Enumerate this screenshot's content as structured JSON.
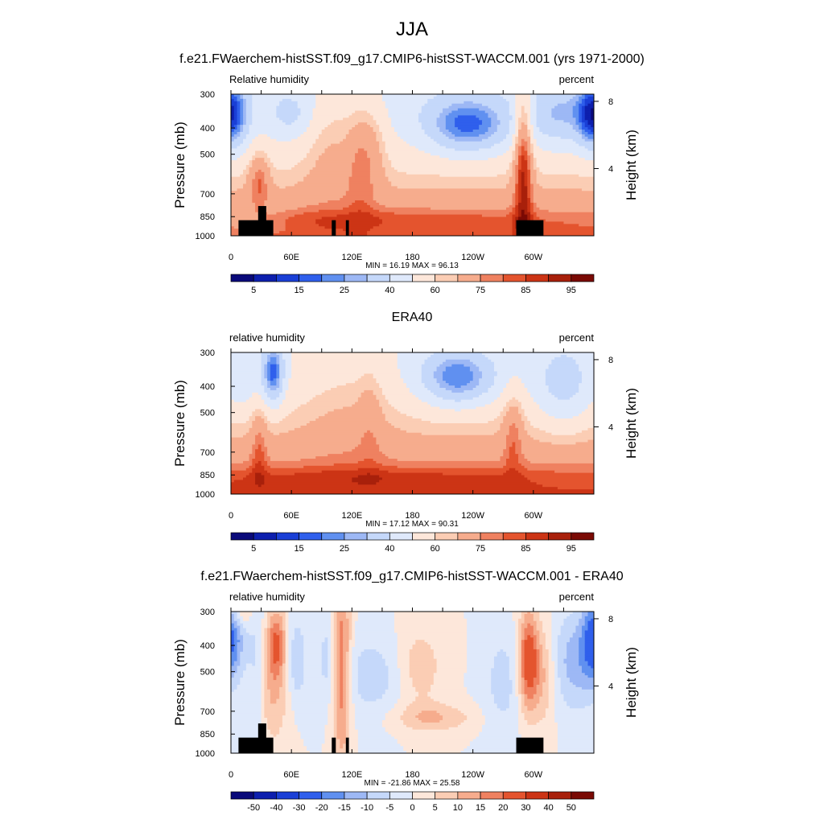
{
  "figure": {
    "title": "JJA"
  },
  "colorbars": {
    "abs": {
      "labels": [
        "5",
        "15",
        "25",
        "40",
        "60",
        "75",
        "85",
        "95"
      ],
      "colors": [
        "#0a0a7a",
        "#0d1fae",
        "#1a3fd6",
        "#2f5fec",
        "#6090f0",
        "#9db8f5",
        "#c5d8fa",
        "#dfe9fb",
        "#fde7da",
        "#fbcdb4",
        "#f6ac8d",
        "#ef8160",
        "#e4542e",
        "#cc3415",
        "#a8200b",
        "#7a0a04"
      ]
    },
    "diff": {
      "labels": [
        "-50",
        "-40",
        "-30",
        "-20",
        "-15",
        "-10",
        "-5",
        "0",
        "5",
        "10",
        "15",
        "20",
        "30",
        "40",
        "50"
      ],
      "colors": [
        "#0a0a7a",
        "#0d1fae",
        "#1a3fd6",
        "#2f5fec",
        "#6090f0",
        "#9db8f5",
        "#c5d8fa",
        "#dfe9fb",
        "#fde7da",
        "#fbcdb4",
        "#f6ac8d",
        "#ef8160",
        "#e4542e",
        "#cc3415",
        "#a8200b",
        "#7a0a04"
      ]
    }
  },
  "chart_data": [
    {
      "type": "heatmap",
      "title": "f.e21.FWaerchem-histSST.f09_g17.CMIP6-histSST-WACCM.001 (yrs 1971-2000)",
      "left_label": "Relative humidity",
      "right_label": "percent",
      "ylabel": "Pressure (mb)",
      "y2label": "Height (km)",
      "x_ticks": [
        "0",
        "60E",
        "120E",
        "180",
        "120W",
        "60W"
      ],
      "x_tick_values": [
        0,
        60,
        120,
        180,
        240,
        300
      ],
      "xlim": [
        0,
        360
      ],
      "y_ticks": [
        "300",
        "400",
        "500",
        "700",
        "850",
        "1000"
      ],
      "y_tick_values": [
        300,
        400,
        500,
        700,
        850,
        1000
      ],
      "ylim": [
        1000,
        300
      ],
      "y_scale": "log",
      "y2_ticks": [
        "4",
        "8"
      ],
      "y2_tick_values": [
        4,
        8
      ],
      "min_max": "MIN =  16.19  MAX =  96.13",
      "colorbar": "abs",
      "topography": true
    },
    {
      "type": "heatmap",
      "title": "ERA40",
      "left_label": "relative humidity",
      "right_label": "percent",
      "ylabel": "Pressure (mb)",
      "y2label": "Height (km)",
      "x_ticks": [
        "0",
        "60E",
        "120E",
        "180",
        "120W",
        "60W"
      ],
      "x_tick_values": [
        0,
        60,
        120,
        180,
        240,
        300
      ],
      "xlim": [
        0,
        360
      ],
      "y_ticks": [
        "300",
        "400",
        "500",
        "700",
        "850",
        "1000"
      ],
      "y_tick_values": [
        300,
        400,
        500,
        700,
        850,
        1000
      ],
      "ylim": [
        1000,
        300
      ],
      "y_scale": "log",
      "y2_ticks": [
        "4",
        "8"
      ],
      "y2_tick_values": [
        4,
        8
      ],
      "min_max": "MIN =  17.12  MAX =  90.31",
      "colorbar": "abs",
      "topography": false
    },
    {
      "type": "heatmap",
      "title": "f.e21.FWaerchem-histSST.f09_g17.CMIP6-histSST-WACCM.001 - ERA40",
      "left_label": "relative humidity",
      "right_label": "percent",
      "ylabel": "Pressure (mb)",
      "y2label": "Height (km)",
      "x_ticks": [
        "0",
        "60E",
        "120E",
        "180",
        "120W",
        "60W"
      ],
      "x_tick_values": [
        0,
        60,
        120,
        180,
        240,
        300
      ],
      "xlim": [
        0,
        360
      ],
      "y_ticks": [
        "300",
        "400",
        "500",
        "700",
        "850",
        "1000"
      ],
      "y_tick_values": [
        300,
        400,
        500,
        700,
        850,
        1000
      ],
      "ylim": [
        1000,
        300
      ],
      "y_scale": "log",
      "y2_ticks": [
        "4",
        "8"
      ],
      "y2_tick_values": [
        4,
        8
      ],
      "min_max": "MIN = -21.86  MAX =  25.58",
      "colorbar": "diff",
      "topography": true
    }
  ]
}
